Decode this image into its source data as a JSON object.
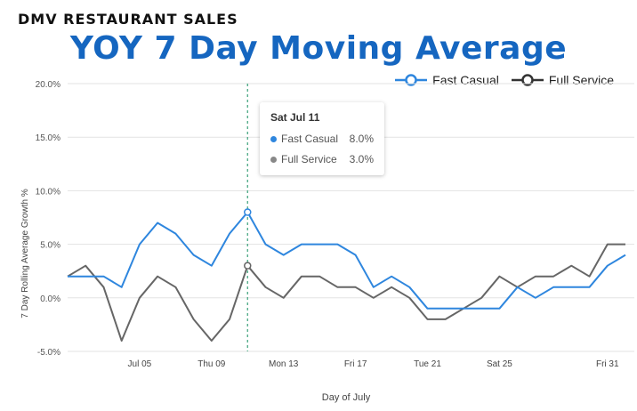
{
  "kicker": "DMV RESTAURANT SALES",
  "headline": "YOY 7 Day Moving Average",
  "colors": {
    "fast_casual": "#2e86de",
    "full_service": "#666666",
    "headline": "#1566c0",
    "crosshair": "#3aa17a"
  },
  "tooltip": {
    "date": "Sat Jul 11",
    "rows": [
      {
        "name": "Fast Casual",
        "value": "8.0%"
      },
      {
        "name": "Full Service",
        "value": "3.0%"
      }
    ]
  },
  "chart_data": {
    "type": "line",
    "title": "YOY 7 Day Moving Average",
    "xlabel": "Day of July",
    "ylabel": "7 Day Rolling Average Growth %",
    "ylim": [
      -5,
      20
    ],
    "yticks": [
      "20.0%",
      "15.0%",
      "10.0%",
      "5.0%",
      "0.0%",
      "-5.0%"
    ],
    "xticks": [
      {
        "day": 5,
        "label": "Jul 05"
      },
      {
        "day": 9,
        "label": "Thu 09"
      },
      {
        "day": 13,
        "label": "Mon 13"
      },
      {
        "day": 17,
        "label": "Fri 17"
      },
      {
        "day": 21,
        "label": "Tue 21"
      },
      {
        "day": 25,
        "label": "Sat 25"
      },
      {
        "day": 31,
        "label": "Fri 31"
      }
    ],
    "x": [
      1,
      2,
      3,
      4,
      5,
      6,
      7,
      8,
      9,
      10,
      11,
      12,
      13,
      14,
      15,
      16,
      17,
      18,
      19,
      20,
      21,
      22,
      23,
      24,
      25,
      26,
      27,
      28,
      29,
      30,
      31,
      32
    ],
    "series": [
      {
        "name": "Fast Casual",
        "values": [
          2,
          2,
          2,
          1,
          5,
          7,
          6,
          4,
          3,
          6,
          8,
          5,
          4,
          5,
          5,
          5,
          4,
          1,
          2,
          1,
          -1,
          -1,
          -1,
          -1,
          -1,
          1,
          0,
          1,
          1,
          1,
          3,
          4
        ]
      },
      {
        "name": "Full Service",
        "values": [
          2,
          3,
          1,
          -4,
          0,
          2,
          1,
          -2,
          -4,
          -2,
          3,
          1,
          0,
          2,
          2,
          1,
          1,
          0,
          1,
          0,
          -2,
          -2,
          -1,
          0,
          2,
          1,
          2,
          2,
          3,
          2,
          5,
          5
        ]
      }
    ],
    "highlight_day": 11,
    "grid": true,
    "legend": "top-right"
  }
}
